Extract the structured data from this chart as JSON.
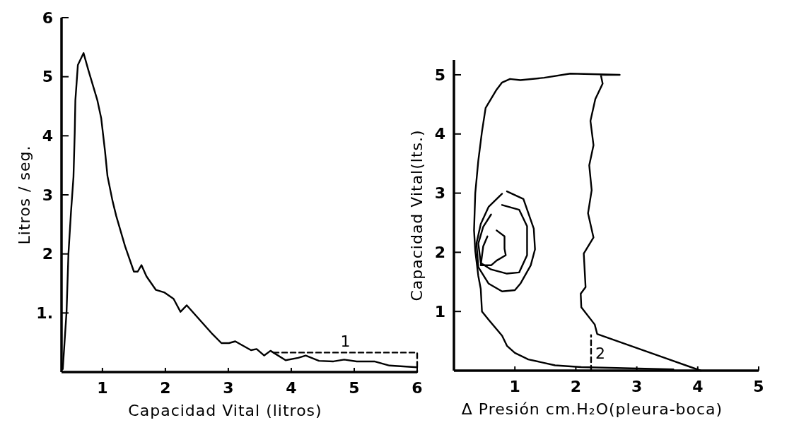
{
  "chart_data": [
    {
      "type": "line",
      "xlabel": "Capacidad Vital (litros)",
      "ylabel": "Litros / seg.",
      "xlim": [
        0.35,
        6
      ],
      "ylim": [
        0,
        6
      ],
      "xticks": [
        1,
        2,
        3,
        4,
        5,
        6
      ],
      "yticks": [
        {
          "value": 1,
          "label": "1."
        },
        2,
        3,
        4,
        5,
        6
      ],
      "grid": false,
      "marker": "none",
      "series": [
        {
          "color": "#000000",
          "line_style": "solid",
          "x": [
            0.37,
            0.43,
            0.46,
            0.5,
            0.54,
            0.56,
            0.57,
            0.61,
            0.7,
            0.78,
            0.92,
            0.98,
            1.04,
            1.08,
            1.16,
            1.22,
            1.36,
            1.5,
            1.56,
            1.62,
            1.7,
            1.85,
            1.98,
            2.13,
            2.24,
            2.34,
            2.59,
            2.75,
            2.89,
            3.01,
            3.11,
            3.36,
            3.45,
            3.57,
            3.67,
            3.91,
            4.11,
            4.23,
            4.44,
            4.67,
            4.84,
            5.04,
            5.32,
            5.56,
            6.0
          ],
          "values": [
            0.05,
            1.02,
            2.0,
            2.7,
            3.3,
            4.05,
            4.6,
            5.2,
            5.4,
            5.1,
            4.6,
            4.3,
            3.75,
            3.32,
            2.9,
            2.64,
            2.13,
            1.7,
            1.7,
            1.81,
            1.62,
            1.39,
            1.35,
            1.24,
            1.02,
            1.13,
            0.83,
            0.64,
            0.49,
            0.49,
            0.52,
            0.37,
            0.39,
            0.28,
            0.36,
            0.2,
            0.24,
            0.28,
            0.19,
            0.18,
            0.21,
            0.18,
            0.18,
            0.11,
            0.08
          ]
        },
        {
          "color": "#000000",
          "line_style": "dashed",
          "x": [
            3.72,
            6.0,
            6.0
          ],
          "values": [
            0.33,
            0.33,
            0.0
          ]
        }
      ],
      "annotations": [
        {
          "text": "1",
          "x": 4.86,
          "y": 0.33
        }
      ]
    },
    {
      "type": "line",
      "xlabel": "Δ Presión  cm.H₂O(pleura-boca)",
      "ylabel": "Capacidad Vital(lts.)",
      "xlim": [
        0,
        5
      ],
      "ylim": [
        0,
        5.25
      ],
      "xticks": [
        1,
        2,
        3,
        4,
        5
      ],
      "yticks": [
        1,
        2,
        3,
        4,
        5
      ],
      "grid": false,
      "marker": "none",
      "series": [
        {
          "color": "#000000",
          "line_style": "solid",
          "x": [
            4.05,
            2.35,
            2.31,
            2.09,
            2.08,
            2.16,
            2.13,
            2.29,
            2.2,
            2.26,
            2.22,
            2.29,
            2.24,
            2.32,
            2.44,
            2.41,
            2.72,
            1.91,
            1.48,
            1.09,
            0.92,
            0.79,
            0.7,
            0.52,
            0.46,
            0.4,
            0.35,
            0.33,
            0.35,
            0.4,
            0.44,
            0.46,
            0.57,
            0.79,
            0.87,
            1.0,
            1.22,
            1.66,
            2.09,
            3.6
          ],
          "values": [
            0.0,
            0.62,
            0.78,
            1.07,
            1.3,
            1.41,
            1.98,
            2.25,
            2.66,
            3.05,
            3.47,
            3.81,
            4.22,
            4.59,
            4.85,
            5.0,
            5.0,
            5.02,
            4.95,
            4.91,
            4.93,
            4.87,
            4.75,
            4.44,
            4.04,
            3.55,
            3.0,
            2.37,
            2.02,
            1.6,
            1.38,
            1.0,
            0.86,
            0.59,
            0.42,
            0.3,
            0.19,
            0.09,
            0.06,
            0.02
          ]
        },
        {
          "color": "#000000",
          "line_style": "solid",
          "x": [
            0.87,
            1.14,
            1.31,
            1.33,
            1.26,
            1.09,
            1.0,
            0.79,
            0.57,
            0.4,
            0.37,
            0.44,
            0.57,
            0.79
          ],
          "values": [
            3.03,
            2.9,
            2.4,
            2.05,
            1.78,
            1.47,
            1.36,
            1.34,
            1.47,
            1.75,
            2.15,
            2.48,
            2.77,
            2.99
          ]
        },
        {
          "color": "#000000",
          "line_style": "solid",
          "x": [
            0.79,
            1.07,
            1.2,
            1.2,
            1.07,
            0.87,
            0.61,
            0.44,
            0.4,
            0.48,
            0.61
          ],
          "values": [
            2.8,
            2.72,
            2.44,
            1.95,
            1.66,
            1.64,
            1.71,
            1.82,
            2.15,
            2.43,
            2.64
          ]
        },
        {
          "color": "#000000",
          "line_style": "solid",
          "x": [
            0.7,
            0.83,
            0.83,
            0.85,
            0.7,
            0.61,
            0.44,
            0.48,
            0.55
          ],
          "values": [
            2.37,
            2.27,
            2.06,
            1.95,
            1.86,
            1.78,
            1.78,
            2.1,
            2.27
          ]
        },
        {
          "color": "#000000",
          "line_style": "dashed",
          "x": [
            2.25,
            2.25
          ],
          "values": [
            0.0,
            0.6
          ]
        }
      ],
      "annotations": [
        {
          "text": "2",
          "x": 2.25,
          "y": 0.3
        }
      ]
    }
  ]
}
